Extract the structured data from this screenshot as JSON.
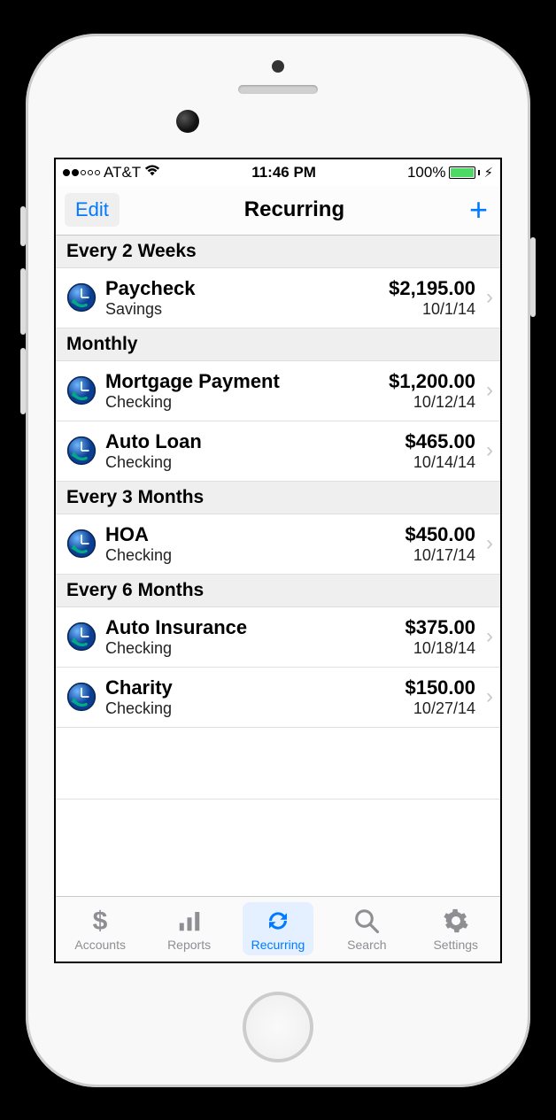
{
  "status": {
    "carrier": "AT&T",
    "time": "11:46 PM",
    "battery_pct": "100%",
    "signal_filled": 2,
    "signal_total": 5,
    "charging": true
  },
  "navbar": {
    "edit": "Edit",
    "title": "Recurring",
    "add": "+"
  },
  "colors": {
    "accent": "#007aff",
    "battery_fill": "#4cd964",
    "tab_inactive": "#8e8e93",
    "section_bg": "#efeff0",
    "divider": "#e0e0e0"
  },
  "sections": [
    {
      "title": "Every 2 Weeks",
      "items": [
        {
          "title": "Paycheck",
          "account": "Savings",
          "amount": "$2,195.00",
          "date": "10/1/14"
        }
      ]
    },
    {
      "title": "Monthly",
      "items": [
        {
          "title": "Mortgage Payment",
          "account": "Checking",
          "amount": "$1,200.00",
          "date": "10/12/14"
        },
        {
          "title": "Auto Loan",
          "account": "Checking",
          "amount": "$465.00",
          "date": "10/14/14"
        }
      ]
    },
    {
      "title": "Every 3 Months",
      "items": [
        {
          "title": "HOA",
          "account": "Checking",
          "amount": "$450.00",
          "date": "10/17/14"
        }
      ]
    },
    {
      "title": "Every 6 Months",
      "items": [
        {
          "title": "Auto Insurance",
          "account": "Checking",
          "amount": "$375.00",
          "date": "10/18/14"
        },
        {
          "title": "Charity",
          "account": "Checking",
          "amount": "$150.00",
          "date": "10/27/14"
        }
      ]
    }
  ],
  "tabs": [
    {
      "id": "accounts",
      "label": "Accounts",
      "icon": "dollar",
      "active": false
    },
    {
      "id": "reports",
      "label": "Reports",
      "icon": "bars",
      "active": false
    },
    {
      "id": "recurring",
      "label": "Recurring",
      "icon": "refresh",
      "active": true
    },
    {
      "id": "search",
      "label": "Search",
      "icon": "search",
      "active": false
    },
    {
      "id": "settings",
      "label": "Settings",
      "icon": "gear",
      "active": false
    }
  ]
}
